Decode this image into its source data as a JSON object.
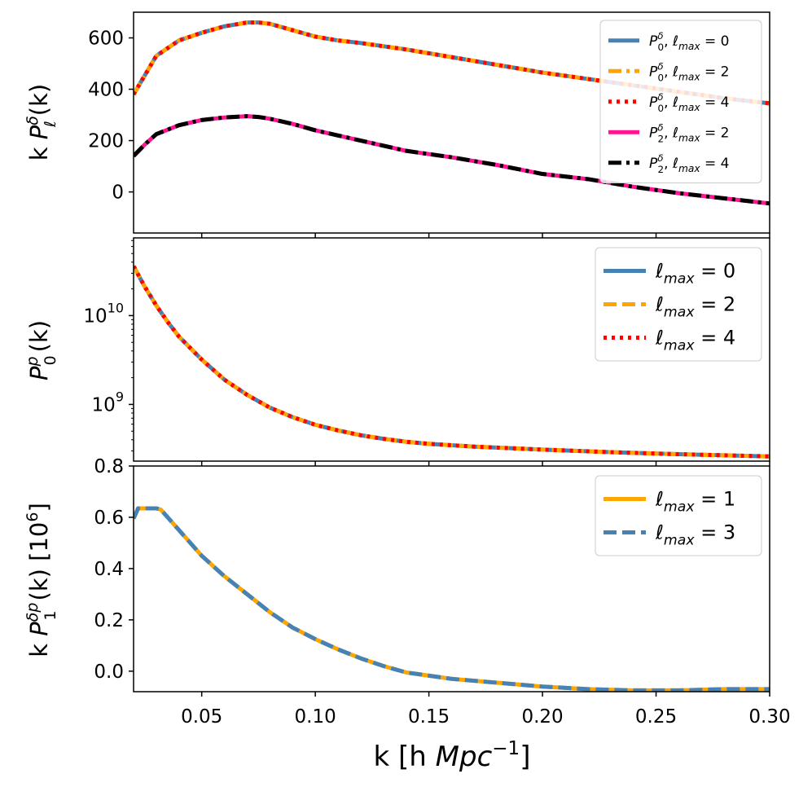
{
  "colors": {
    "steelblue": "#4682b4",
    "orange": "#ffa500",
    "red": "#ff0000",
    "pink": "#ff1493",
    "black": "#000000"
  },
  "chart_data": [
    {
      "type": "line",
      "panel": "top",
      "ylabel_text": "k",
      "ylabel_math": "P",
      "ylabel_sup": "δ",
      "ylabel_sub": "ℓ",
      "ylabel_arg": "(k)",
      "ylim": [
        -160,
        700
      ],
      "yticks": [
        0,
        200,
        400,
        600
      ],
      "ytick_labels": [
        "0",
        "200",
        "400",
        "600"
      ],
      "x": [
        0.02,
        0.025,
        0.03,
        0.04,
        0.05,
        0.06,
        0.07,
        0.075,
        0.08,
        0.09,
        0.1,
        0.11,
        0.12,
        0.14,
        0.16,
        0.18,
        0.2,
        0.22,
        0.24,
        0.26,
        0.28,
        0.3
      ],
      "series": [
        {
          "name": "P_0^δ, ℓ_max = 0",
          "legend_main": "P",
          "legend_sup": "δ",
          "legend_sub": "0",
          "legend_lsub": "max",
          "legend_val": "0",
          "color": "#4682b4",
          "style": "solid",
          "values": [
            380,
            455,
            530,
            590,
            620,
            645,
            660,
            660,
            655,
            630,
            605,
            590,
            580,
            555,
            525,
            495,
            465,
            440,
            415,
            390,
            365,
            345
          ]
        },
        {
          "name": "P_0^δ, ℓ_max = 2",
          "legend_main": "P",
          "legend_sup": "δ",
          "legend_sub": "0",
          "legend_lsub": "max",
          "legend_val": "2",
          "color": "#ffa500",
          "style": "dashdot",
          "values": [
            380,
            455,
            530,
            590,
            620,
            645,
            660,
            660,
            655,
            630,
            605,
            590,
            580,
            555,
            525,
            495,
            465,
            440,
            415,
            390,
            365,
            345
          ]
        },
        {
          "name": "P_0^δ, ℓ_max = 4",
          "legend_main": "P",
          "legend_sup": "δ",
          "legend_sub": "0",
          "legend_lsub": "max",
          "legend_val": "4",
          "color": "#ff0000",
          "style": "dotted",
          "values": [
            380,
            455,
            530,
            590,
            620,
            645,
            660,
            660,
            655,
            630,
            605,
            590,
            580,
            555,
            525,
            495,
            465,
            440,
            415,
            390,
            365,
            345
          ]
        },
        {
          "name": "P_2^δ, ℓ_max = 2",
          "legend_main": "P",
          "legend_sup": "δ",
          "legend_sub": "2",
          "legend_lsub": "max",
          "legend_val": "2",
          "color": "#ff1493",
          "style": "solid",
          "values": [
            140,
            185,
            225,
            260,
            280,
            290,
            295,
            292,
            285,
            265,
            240,
            220,
            200,
            160,
            135,
            105,
            70,
            50,
            20,
            -5,
            -25,
            -45
          ]
        },
        {
          "name": "P_2^δ, ℓ_max = 4",
          "legend_main": "P",
          "legend_sup": "δ",
          "legend_sub": "2",
          "legend_lsub": "max",
          "legend_val": "4",
          "color": "#000000",
          "style": "dashdot",
          "values": [
            140,
            185,
            225,
            260,
            280,
            290,
            295,
            292,
            285,
            265,
            240,
            220,
            200,
            160,
            135,
            105,
            70,
            50,
            20,
            -5,
            -25,
            -45
          ]
        }
      ],
      "legend_position": "top-right"
    },
    {
      "type": "line",
      "panel": "middle",
      "yscale": "log",
      "ylabel_math": "P",
      "ylabel_sup": "p",
      "ylabel_sub": "0",
      "ylabel_arg": "(k)",
      "ylim": [
        230000000,
        75000000000
      ],
      "yticks": [
        1000000000,
        10000000000
      ],
      "ytick_base": "10",
      "ytick_exps": [
        "9",
        "10"
      ],
      "x": [
        0.02,
        0.025,
        0.03,
        0.035,
        0.04,
        0.05,
        0.06,
        0.07,
        0.08,
        0.09,
        0.1,
        0.11,
        0.12,
        0.13,
        0.14,
        0.15,
        0.17,
        0.2,
        0.23,
        0.26,
        0.3
      ],
      "series": [
        {
          "name": "ℓ_max = 0",
          "legend_main": "ℓ",
          "legend_lsub": "max",
          "legend_val": "0",
          "color": "#4682b4",
          "style": "solid",
          "values": [
            36000000000,
            21000000000,
            13000000000,
            8500000000,
            5800000000,
            3200000000,
            1900000000,
            1280000000,
            920000000,
            720000000,
            590000000,
            510000000,
            450000000,
            410000000,
            380000000,
            360000000,
            335000000,
            310000000,
            290000000,
            275000000,
            260000000
          ]
        },
        {
          "name": "ℓ_max = 2",
          "legend_main": "ℓ",
          "legend_lsub": "max",
          "legend_val": "2",
          "color": "#ffa500",
          "style": "dashed",
          "values": [
            36000000000,
            21000000000,
            13000000000,
            8500000000,
            5800000000,
            3200000000,
            1900000000,
            1280000000,
            920000000,
            720000000,
            590000000,
            510000000,
            450000000,
            410000000,
            380000000,
            360000000,
            335000000,
            310000000,
            290000000,
            275000000,
            260000000
          ]
        },
        {
          "name": "ℓ_max = 4",
          "legend_main": "ℓ",
          "legend_lsub": "max",
          "legend_val": "4",
          "color": "#ff0000",
          "style": "dotted",
          "values": [
            36000000000,
            21000000000,
            13000000000,
            8500000000,
            5800000000,
            3200000000,
            1900000000,
            1280000000,
            920000000,
            720000000,
            590000000,
            510000000,
            450000000,
            410000000,
            380000000,
            360000000,
            335000000,
            310000000,
            290000000,
            275000000,
            260000000
          ]
        }
      ],
      "legend_position": "top-right"
    },
    {
      "type": "line",
      "panel": "bottom",
      "ylabel_text": "k",
      "ylabel_math": "P",
      "ylabel_sup": "δp",
      "ylabel_sub": "1",
      "ylabel_arg": "(k)",
      "ylabel_unit": "[10",
      "ylabel_unit_exp": "6",
      "ylabel_unit_close": "]",
      "ylim": [
        -0.08,
        0.8
      ],
      "yticks": [
        0.0,
        0.2,
        0.4,
        0.6,
        0.8
      ],
      "ytick_labels": [
        "0.0",
        "0.2",
        "0.4",
        "0.6",
        "0.8"
      ],
      "x": [
        0.02,
        0.022,
        0.025,
        0.03,
        0.032,
        0.04,
        0.05,
        0.06,
        0.07,
        0.08,
        0.09,
        0.1,
        0.11,
        0.12,
        0.13,
        0.14,
        0.16,
        0.18,
        0.2,
        0.22,
        0.24,
        0.26,
        0.28,
        0.3
      ],
      "series": [
        {
          "name": "ℓ_max = 1",
          "legend_main": "ℓ",
          "legend_lsub": "max",
          "legend_val": "1",
          "color": "#ffa500",
          "style": "solid",
          "values": [
            0.595,
            0.635,
            0.635,
            0.635,
            0.63,
            0.55,
            0.45,
            0.37,
            0.3,
            0.23,
            0.17,
            0.125,
            0.085,
            0.05,
            0.02,
            -0.005,
            -0.03,
            -0.045,
            -0.06,
            -0.07,
            -0.075,
            -0.075,
            -0.07,
            -0.07
          ]
        },
        {
          "name": "ℓ_max = 3",
          "legend_main": "ℓ",
          "legend_lsub": "max",
          "legend_val": "3",
          "color": "#4682b4",
          "style": "dashed",
          "values": [
            0.595,
            0.635,
            0.635,
            0.635,
            0.63,
            0.55,
            0.45,
            0.37,
            0.3,
            0.23,
            0.17,
            0.125,
            0.085,
            0.05,
            0.02,
            -0.005,
            -0.03,
            -0.045,
            -0.06,
            -0.07,
            -0.075,
            -0.075,
            -0.07,
            -0.07
          ]
        }
      ],
      "legend_position": "top-right"
    }
  ],
  "xaxis": {
    "xlim": [
      0.02,
      0.3
    ],
    "ticks": [
      0.05,
      0.1,
      0.15,
      0.2,
      0.25,
      0.3
    ],
    "tick_labels": [
      "0.05",
      "0.10",
      "0.15",
      "0.20",
      "0.25",
      "0.30"
    ],
    "label_prefix": "k [h",
    "label_math": "Mpc",
    "label_exp": "−1",
    "label_suffix": "]"
  }
}
